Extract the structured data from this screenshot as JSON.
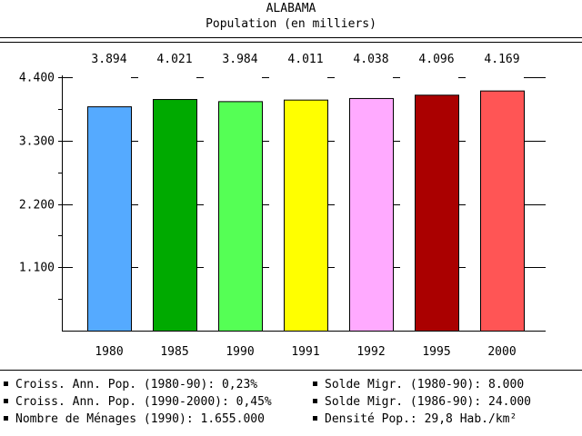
{
  "chart_data": {
    "type": "bar",
    "title": "ALABAMA",
    "subtitle": "Population (en milliers)",
    "categories": [
      "1980",
      "1985",
      "1990",
      "1991",
      "1992",
      "1995",
      "2000"
    ],
    "values": [
      3.894,
      4.021,
      3.984,
      4.011,
      4.038,
      4.096,
      4.169
    ],
    "value_labels": [
      "3.894",
      "4.021",
      "3.984",
      "4.011",
      "4.038",
      "4.096",
      "4.169"
    ],
    "colors": [
      "#55aaff",
      "#00aa00",
      "#55ff55",
      "#ffff00",
      "#ffaaff",
      "#aa0000",
      "#ff5555"
    ],
    "yticks": [
      1.1,
      2.2,
      3.3,
      4.4
    ],
    "ytick_labels": [
      "1.100",
      "2.200",
      "3.300",
      "4.400"
    ],
    "ylim": [
      0,
      4.4
    ],
    "xlabel": "",
    "ylabel": "",
    "grid": true
  },
  "stats": {
    "left": [
      "Croiss. Ann. Pop. (1980-90): 0,23%",
      "Croiss. Ann. Pop. (1990-2000): 0,45%",
      "Nombre de Ménages (1990): 1.655.000"
    ],
    "right": [
      "Solde Migr. (1980-90): 8.000",
      "Solde Migr. (1986-90): 24.000",
      "Densité Pop.: 29,8 Hab./km²"
    ]
  }
}
